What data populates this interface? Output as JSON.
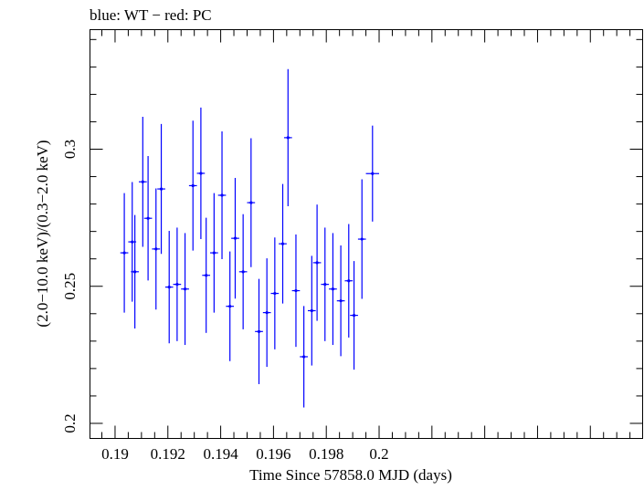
{
  "header": {
    "text": "blue: WT − red: PC"
  },
  "colors": {
    "data": "#0000ff",
    "axis": "#000000",
    "background": "#ffffff"
  },
  "chart_data": {
    "type": "scatter",
    "title": "blue: WT − red: PC",
    "xlabel": "Time Since 57858.0 MJD (days)",
    "ylabel": "(2.0−10.0 keV)/(0.3−2.0 keV)",
    "xlim": [
      0.18905,
      0.20998
    ],
    "ylim": [
      0.1945,
      0.3436
    ],
    "x_ticks": [
      {
        "value": 0.19,
        "label": "0.19"
      },
      {
        "value": 0.192,
        "label": "0.192"
      },
      {
        "value": 0.194,
        "label": "0.194"
      },
      {
        "value": 0.196,
        "label": "0.196"
      },
      {
        "value": 0.198,
        "label": "0.198"
      },
      {
        "value": 0.2,
        "label": "0.2"
      }
    ],
    "y_ticks": [
      {
        "value": 0.2,
        "label": "0.2"
      },
      {
        "value": 0.25,
        "label": "0.25"
      },
      {
        "value": 0.3,
        "label": "0.3"
      }
    ],
    "grid": false,
    "legend": "none",
    "series": [
      {
        "color": "#0000ff",
        "points": [
          {
            "x": 0.19035,
            "xerr": 0.00015,
            "y": 0.2622,
            "yerr": 0.0218
          },
          {
            "x": 0.19065,
            "xerr": 0.00015,
            "y": 0.2662,
            "yerr": 0.0218
          },
          {
            "x": 0.19075,
            "xerr": 0.00015,
            "y": 0.2553,
            "yerr": 0.0207
          },
          {
            "x": 0.19105,
            "xerr": 0.00015,
            "y": 0.2881,
            "yerr": 0.0237
          },
          {
            "x": 0.19125,
            "xerr": 0.00015,
            "y": 0.2748,
            "yerr": 0.0227
          },
          {
            "x": 0.19155,
            "xerr": 0.00015,
            "y": 0.2636,
            "yerr": 0.0221
          },
          {
            "x": 0.19175,
            "xerr": 0.00015,
            "y": 0.2855,
            "yerr": 0.0237
          },
          {
            "x": 0.19205,
            "xerr": 0.00015,
            "y": 0.2497,
            "yerr": 0.0205
          },
          {
            "x": 0.19235,
            "xerr": 0.00015,
            "y": 0.2507,
            "yerr": 0.0207
          },
          {
            "x": 0.19265,
            "xerr": 0.00015,
            "y": 0.249,
            "yerr": 0.0204
          },
          {
            "x": 0.19295,
            "xerr": 0.00015,
            "y": 0.2867,
            "yerr": 0.0237
          },
          {
            "x": 0.19325,
            "xerr": 0.00015,
            "y": 0.2912,
            "yerr": 0.024
          },
          {
            "x": 0.19345,
            "xerr": 0.00015,
            "y": 0.254,
            "yerr": 0.021
          },
          {
            "x": 0.19375,
            "xerr": 0.00015,
            "y": 0.2622,
            "yerr": 0.0218
          },
          {
            "x": 0.19405,
            "xerr": 0.00015,
            "y": 0.2832,
            "yerr": 0.0233
          },
          {
            "x": 0.19435,
            "xerr": 0.00015,
            "y": 0.2427,
            "yerr": 0.02
          },
          {
            "x": 0.19455,
            "xerr": 0.00015,
            "y": 0.2675,
            "yerr": 0.022
          },
          {
            "x": 0.19485,
            "xerr": 0.00015,
            "y": 0.2553,
            "yerr": 0.021
          },
          {
            "x": 0.19515,
            "xerr": 0.00015,
            "y": 0.2805,
            "yerr": 0.0235
          },
          {
            "x": 0.19545,
            "xerr": 0.00015,
            "y": 0.2335,
            "yerr": 0.0192
          },
          {
            "x": 0.19575,
            "xerr": 0.00015,
            "y": 0.2404,
            "yerr": 0.0198
          },
          {
            "x": 0.19605,
            "xerr": 0.00015,
            "y": 0.2474,
            "yerr": 0.0204
          },
          {
            "x": 0.19635,
            "xerr": 0.00015,
            "y": 0.2655,
            "yerr": 0.0218
          },
          {
            "x": 0.19655,
            "xerr": 0.00015,
            "y": 0.3042,
            "yerr": 0.025
          },
          {
            "x": 0.19685,
            "xerr": 0.00015,
            "y": 0.2484,
            "yerr": 0.0205
          },
          {
            "x": 0.19715,
            "xerr": 0.00015,
            "y": 0.2243,
            "yerr": 0.0185
          },
          {
            "x": 0.19745,
            "xerr": 0.00015,
            "y": 0.2411,
            "yerr": 0.02
          },
          {
            "x": 0.19765,
            "xerr": 0.00015,
            "y": 0.2586,
            "yerr": 0.0212
          },
          {
            "x": 0.19795,
            "xerr": 0.00015,
            "y": 0.2507,
            "yerr": 0.0207
          },
          {
            "x": 0.19825,
            "xerr": 0.00015,
            "y": 0.249,
            "yerr": 0.0204
          },
          {
            "x": 0.19855,
            "xerr": 0.00015,
            "y": 0.2447,
            "yerr": 0.0202
          },
          {
            "x": 0.19885,
            "xerr": 0.00015,
            "y": 0.252,
            "yerr": 0.0207
          },
          {
            "x": 0.19905,
            "xerr": 0.00015,
            "y": 0.2394,
            "yerr": 0.0198
          },
          {
            "x": 0.19935,
            "xerr": 0.00015,
            "y": 0.2672,
            "yerr": 0.0218
          },
          {
            "x": 0.19975,
            "xerr": 0.00025,
            "y": 0.2911,
            "yerr": 0.0175
          }
        ]
      }
    ]
  }
}
